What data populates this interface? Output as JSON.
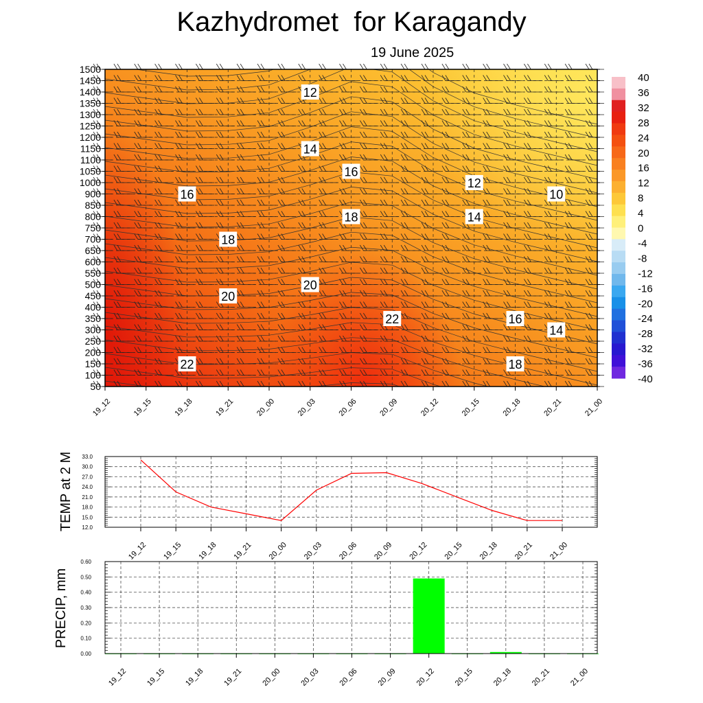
{
  "title": "Kazhydromet  for Karagandy",
  "date": "19 June 2025",
  "chart_data": [
    {
      "type": "heatmap",
      "title": "Kazhydromet  for Karagandy",
      "subtitle": "19 June 2025",
      "x_labels": [
        "19_12",
        "19_15",
        "19_18",
        "19_21",
        "20_00",
        "20_03",
        "20_06",
        "20_09",
        "20_12",
        "20_15",
        "20_18",
        "20_21",
        "21_00"
      ],
      "y_levels": [
        50,
        100,
        150,
        200,
        250,
        300,
        350,
        400,
        450,
        500,
        550,
        600,
        650,
        700,
        750,
        800,
        850,
        900,
        1000,
        1050,
        1100,
        1150,
        1200,
        1250,
        1300,
        1350,
        1400,
        1450,
        1500
      ],
      "colorbar": {
        "ticks": [
          40,
          36,
          32,
          28,
          24,
          20,
          16,
          12,
          8,
          4,
          0,
          -4,
          -8,
          -12,
          -16,
          -20,
          -24,
          -28,
          -32,
          -36,
          -40
        ],
        "colors_warm": [
          "#f8c0c8",
          "#f090a0",
          "#e02020",
          "#e82010",
          "#f03a10",
          "#f45010",
          "#f76818",
          "#f98020",
          "#fb9828",
          "#fcb030",
          "#fdc838",
          "#fee050",
          "#fff07a",
          "#fff8b0"
        ],
        "colors_cold": [
          "#d8ecf8",
          "#b8dcf4",
          "#98ccf0",
          "#70b8ec",
          "#3aa8f0",
          "#1890e8",
          "#2070e0",
          "#2050d8",
          "#2030d0",
          "#2818d0",
          "#4010d8",
          "#7028e0"
        ]
      },
      "contour_labels": [
        {
          "text": "12",
          "x": "20_03",
          "y": 1400
        },
        {
          "text": "14",
          "x": "20_03",
          "y": 1150
        },
        {
          "text": "16",
          "x": "20_06",
          "y": 1050
        },
        {
          "text": "12",
          "x": "20_15",
          "y": 1000
        },
        {
          "text": "10",
          "x": "20_21",
          "y": 900
        },
        {
          "text": "16",
          "x": "19_18",
          "y": 900
        },
        {
          "text": "18",
          "x": "20_06",
          "y": 800
        },
        {
          "text": "14",
          "x": "20_15",
          "y": 800
        },
        {
          "text": "18",
          "x": "19_21",
          "y": 700
        },
        {
          "text": "20",
          "x": "20_03",
          "y": 500
        },
        {
          "text": "20",
          "x": "19_21",
          "y": 450
        },
        {
          "text": "22",
          "x": "20_09",
          "y": 350
        },
        {
          "text": "16",
          "x": "20_18",
          "y": 350
        },
        {
          "text": "14",
          "x": "20_21",
          "y": 300
        },
        {
          "text": "22",
          "x": "19_18",
          "y": 150
        },
        {
          "text": "18",
          "x": "20_18",
          "y": 150
        }
      ]
    },
    {
      "type": "line",
      "ylabel": "TEMP at 2 M",
      "ylim": [
        12.0,
        33.0
      ],
      "y_ticks": [
        "33.0",
        "30.0",
        "27.0",
        "24.0",
        "21.0",
        "18.0",
        "15.0",
        "12.0"
      ],
      "categories": [
        "19_12",
        "19_15",
        "19_18",
        "19_21",
        "20_00",
        "20_03",
        "20_06",
        "20_09",
        "20_12",
        "20_15",
        "20_18",
        "20_21",
        "21_00"
      ],
      "values": [
        32.0,
        22.5,
        18.0,
        16.0,
        14.0,
        23.0,
        28.0,
        28.2,
        25.0,
        21.0,
        17.0,
        14.0,
        14.0
      ],
      "color": "#ff0000"
    },
    {
      "type": "bar",
      "ylabel": "PRECIP, mm",
      "ylim": [
        0.0,
        0.6
      ],
      "y_ticks": [
        "0.60",
        "0.50",
        "0.40",
        "0.30",
        "0.20",
        "0.10",
        "0.00"
      ],
      "categories": [
        "19_12",
        "19_15",
        "19_18",
        "19_21",
        "20_00",
        "20_03",
        "20_06",
        "20_09",
        "20_12",
        "20_15",
        "20_18",
        "20_21",
        "21_00"
      ],
      "values": [
        0,
        0,
        0,
        0,
        0,
        0,
        0,
        0,
        0.49,
        0,
        0.01,
        0,
        0
      ],
      "color": "#00ff00"
    }
  ]
}
